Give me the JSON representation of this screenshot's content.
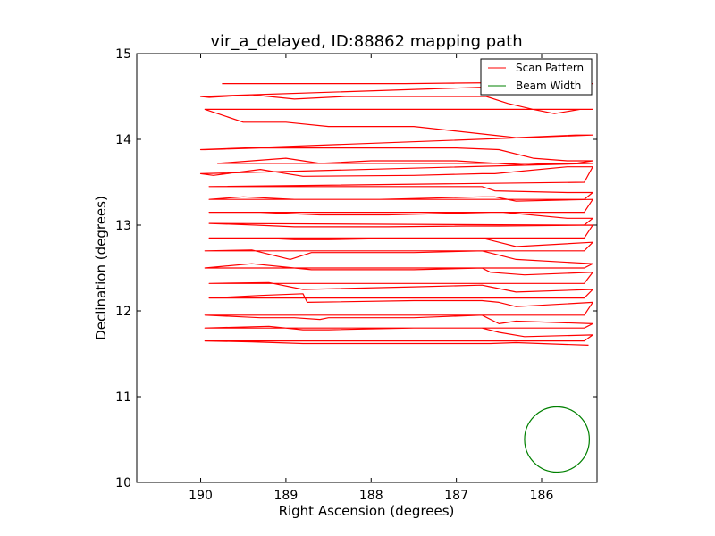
{
  "chart_data": {
    "type": "line",
    "title": "vir_a_delayed, ID:88862 mapping path",
    "xlabel": "Right Ascension (degrees)",
    "ylabel": "Declination (degrees)",
    "xlim": [
      190.75,
      185.35
    ],
    "ylim": [
      10,
      15
    ],
    "xticks": [
      190,
      189,
      188,
      187,
      186
    ],
    "yticks": [
      10,
      11,
      12,
      13,
      14,
      15
    ],
    "xtick_labels": [
      "190",
      "189",
      "188",
      "187",
      "186"
    ],
    "ytick_labels": [
      "10",
      "11",
      "12",
      "13",
      "14",
      "15"
    ],
    "grid": false,
    "legend_position": "top-right",
    "colors": {
      "scan": "#ff0000",
      "beam": "#008000"
    },
    "series": [
      {
        "name": "Scan Pattern",
        "kind": "path",
        "x": [
          189.75,
          188.6,
          187.6,
          186.6,
          186.3,
          186.0,
          185.7,
          185.4,
          190.0,
          189.9,
          189.4,
          188.9,
          188.3,
          187.6,
          187.0,
          186.65,
          186.4,
          186.1,
          185.85,
          185.55,
          185.4,
          189.95,
          189.5,
          189.0,
          188.5,
          187.5,
          186.3,
          185.6,
          185.4,
          190.0,
          189.95,
          189.3,
          188.0,
          187.0,
          186.5,
          186.1,
          185.7,
          185.4,
          185.6,
          189.8,
          189.0,
          188.6,
          188.0,
          187.0,
          186.2,
          185.8,
          185.4,
          190.0,
          189.85,
          189.3,
          188.8,
          187.5,
          186.7,
          186.55,
          185.7,
          185.4,
          185.5,
          189.9,
          189.2,
          188.7,
          187.5,
          186.7,
          186.55,
          185.7,
          185.4,
          185.5,
          189.9,
          189.5,
          188.9,
          187.9,
          186.7,
          186.55,
          186.3,
          185.4,
          185.5,
          189.9,
          189.3,
          188.6,
          187.8,
          186.6,
          186.45,
          185.7,
          185.4,
          185.5,
          189.9,
          189.35,
          188.9,
          188.7,
          187.8,
          186.9,
          186.5,
          185.4,
          185.5,
          189.9,
          189.3,
          188.9,
          188.5,
          187.5,
          186.7,
          186.5,
          186.3,
          185.4,
          185.5,
          189.95,
          189.4,
          188.95,
          188.7,
          187.5,
          186.7,
          186.5,
          186.3,
          185.4,
          185.5,
          189.95,
          189.4,
          188.9,
          188.7,
          187.5,
          186.7,
          186.6,
          186.2,
          185.4,
          185.5,
          189.9,
          189.2,
          188.8,
          187.5,
          186.7,
          186.6,
          186.3,
          185.4,
          185.5,
          189.9,
          189.3,
          188.8,
          188.75,
          187.5,
          186.7,
          186.5,
          186.3,
          185.4,
          185.5,
          189.95,
          189.3,
          188.9,
          188.6,
          188.5,
          188.2,
          187.5,
          186.7,
          186.5,
          186.3,
          185.4,
          185.5,
          189.95,
          189.2,
          188.8,
          188.5,
          187.5,
          186.7,
          186.5,
          186.2,
          185.4,
          185.5,
          189.95,
          189.4,
          188.8,
          187.5,
          186.6,
          186.3,
          185.45
        ],
        "y": [
          14.65,
          14.65,
          14.65,
          14.66,
          14.66,
          14.68,
          14.65,
          14.65,
          14.5,
          14.49,
          14.52,
          14.47,
          14.5,
          14.5,
          14.5,
          14.5,
          14.42,
          14.35,
          14.3,
          14.35,
          14.35,
          14.35,
          14.2,
          14.2,
          14.15,
          14.15,
          14.02,
          14.05,
          14.05,
          13.88,
          13.88,
          13.9,
          13.9,
          13.9,
          13.88,
          13.78,
          13.75,
          13.75,
          13.72,
          13.72,
          13.78,
          13.72,
          13.75,
          13.75,
          13.7,
          13.72,
          13.72,
          13.6,
          13.58,
          13.65,
          13.57,
          13.58,
          13.6,
          13.6,
          13.68,
          13.68,
          13.5,
          13.45,
          13.45,
          13.45,
          13.45,
          13.45,
          13.4,
          13.38,
          13.38,
          13.3,
          13.3,
          13.33,
          13.3,
          13.3,
          13.33,
          13.33,
          13.28,
          13.3,
          13.15,
          13.15,
          13.15,
          13.12,
          13.12,
          13.15,
          13.15,
          13.08,
          13.08,
          13.0,
          13.02,
          13.0,
          12.98,
          12.98,
          12.98,
          12.99,
          12.99,
          13.0,
          12.85,
          12.85,
          12.85,
          12.83,
          12.83,
          12.85,
          12.85,
          12.8,
          12.75,
          12.8,
          12.7,
          12.7,
          12.71,
          12.6,
          12.68,
          12.68,
          12.7,
          12.65,
          12.6,
          12.55,
          12.5,
          12.5,
          12.55,
          12.5,
          12.48,
          12.48,
          12.5,
          12.45,
          12.42,
          12.45,
          12.32,
          12.32,
          12.33,
          12.25,
          12.28,
          12.3,
          12.28,
          12.22,
          12.25,
          12.15,
          12.15,
          12.18,
          12.2,
          12.1,
          12.12,
          12.12,
          12.1,
          12.05,
          12.1,
          11.95,
          11.95,
          11.92,
          11.92,
          11.9,
          11.92,
          11.92,
          11.92,
          11.95,
          11.85,
          11.88,
          11.85,
          11.8,
          11.8,
          11.82,
          11.78,
          11.78,
          11.8,
          11.8,
          11.75,
          11.7,
          11.72,
          11.65,
          11.65,
          11.64,
          11.62,
          11.62,
          11.62,
          11.63,
          11.6
        ]
      },
      {
        "name": "Beam Width",
        "kind": "circle",
        "center": [
          185.82,
          10.5
        ],
        "radius": 0.38
      }
    ]
  }
}
